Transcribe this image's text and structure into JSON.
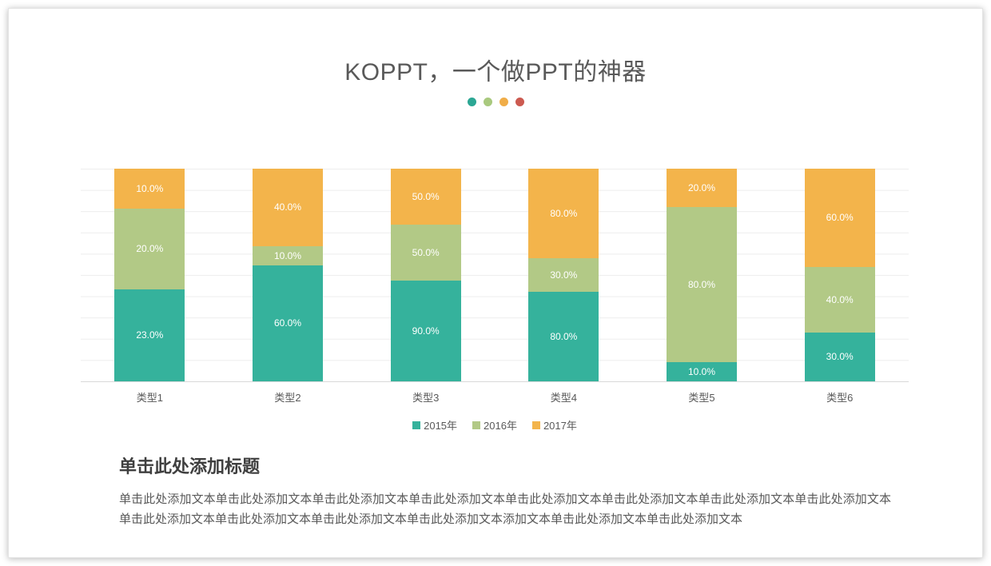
{
  "slide": {
    "title": "KOPPT，一个做PPT的神器",
    "accent_dots": [
      "#2ca794",
      "#a9c97e",
      "#f0ad48",
      "#cc5a50"
    ]
  },
  "chart_data": {
    "type": "bar",
    "subtype": "100-percent-stacked-column",
    "title": "",
    "xlabel": "",
    "ylabel": "",
    "categories": [
      "类型1",
      "类型2",
      "类型3",
      "类型4",
      "类型5",
      "类型6"
    ],
    "series": [
      {
        "name": "2015年",
        "color": "#35b29c",
        "values": [
          23,
          60,
          90,
          80,
          10,
          30
        ]
      },
      {
        "name": "2016年",
        "color": "#b2c986",
        "values": [
          20,
          10,
          50,
          30,
          80,
          40
        ]
      },
      {
        "name": "2017年",
        "color": "#f3b44b",
        "values": [
          10,
          40,
          50,
          80,
          20,
          60
        ]
      }
    ],
    "data_labels": [
      [
        "23.0%",
        "60.0%",
        "90.0%",
        "80.0%",
        "10.0%",
        "30.0%"
      ],
      [
        "20.0%",
        "10.0%",
        "50.0%",
        "30.0%",
        "80.0%",
        "40.0%"
      ],
      [
        "10.0%",
        "40.0%",
        "50.0%",
        "80.0%",
        "20.0%",
        "60.0%"
      ]
    ],
    "value_suffix": "%",
    "ylim": [
      0,
      100
    ],
    "grid": true,
    "gridline_interval_percent": 10,
    "legend_position": "bottom",
    "stacking": "each column normalized to 100% height; labels show raw values"
  },
  "text_block": {
    "heading": "单击此处添加标题",
    "body": "单击此处添加文本单击此处添加文本单击此处添加文本单击此处添加文本单击此处添加文本单击此处添加文本单击此处添加文本单击此处添加文本单击此处添加文本单击此处添加文本单击此处添加文本单击此处添加文本添加文本单击此处添加文本单击此处添加文本"
  }
}
